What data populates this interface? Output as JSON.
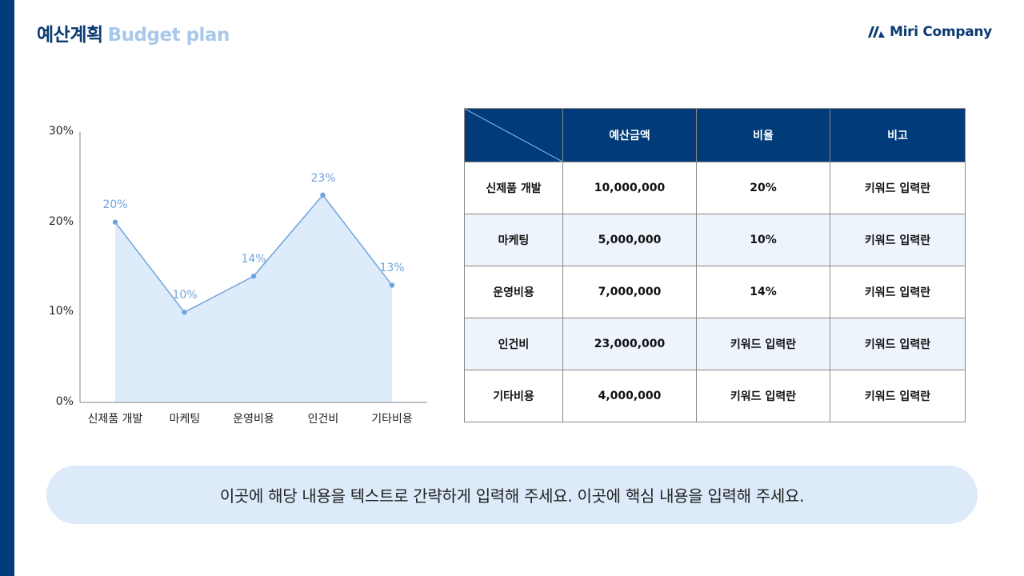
{
  "header": {
    "title_ko": "예산계획",
    "title_en": "Budget plan",
    "logo_text": "Miri Company",
    "logo_icon": "miri-logo-mark-icon"
  },
  "colors": {
    "primary": "#013B7A",
    "accent_light": "#A8C8EA",
    "line": "#6FA4DE",
    "area_fill": "#DDEBFA",
    "row_alt": "#EEF4FC",
    "note_bg": "#DCEAF9"
  },
  "chart_data": {
    "type": "area",
    "title": "",
    "xlabel": "",
    "ylabel": "",
    "categories": [
      "신제품 개발",
      "마케팅",
      "운영비용",
      "인건비",
      "기타비용"
    ],
    "values": [
      20,
      10,
      14,
      23,
      13
    ],
    "data_labels": [
      "20%",
      "10%",
      "14%",
      "23%",
      "13%"
    ],
    "y_ticks": [
      "0%",
      "10%",
      "20%",
      "30%"
    ],
    "ylim": [
      0,
      30
    ],
    "grid": false,
    "legend": "none",
    "markers": true
  },
  "table": {
    "headers": [
      "",
      "예산금액",
      "비율",
      "비고"
    ],
    "rows": [
      [
        "신제품 개발",
        "10,000,000",
        "20%",
        "키워드 입력란"
      ],
      [
        "마케팅",
        "5,000,000",
        "10%",
        "키워드 입력란"
      ],
      [
        "운영비용",
        "7,000,000",
        "14%",
        "키워드 입력란"
      ],
      [
        "인건비",
        "23,000,000",
        "키워드 입력란",
        "키워드 입력란"
      ],
      [
        "기타비용",
        "4,000,000",
        "키워드 입력란",
        "키워드 입력란"
      ]
    ]
  },
  "note": {
    "text": "이곳에 해당 내용을 텍스트로 간략하게 입력해 주세요. 이곳에 핵심 내용을 입력해 주세요."
  }
}
